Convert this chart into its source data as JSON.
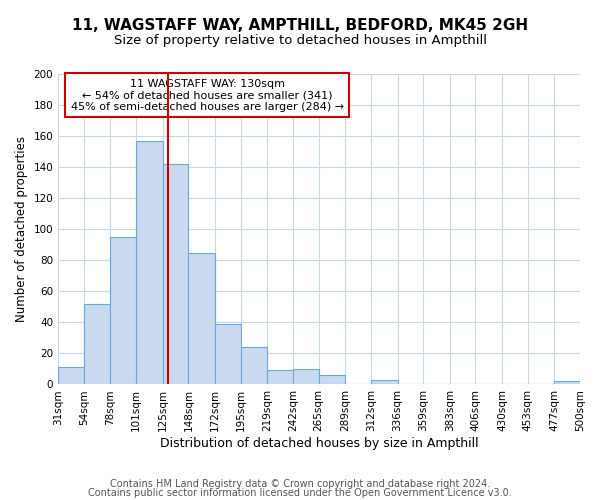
{
  "title": "11, WAGSTAFF WAY, AMPTHILL, BEDFORD, MK45 2GH",
  "subtitle": "Size of property relative to detached houses in Ampthill",
  "xlabel": "Distribution of detached houses by size in Ampthill",
  "ylabel": "Number of detached properties",
  "bin_edges": [
    31,
    54,
    78,
    101,
    125,
    148,
    172,
    195,
    219,
    242,
    265,
    289,
    312,
    336,
    359,
    383,
    406,
    430,
    453,
    477,
    500
  ],
  "counts": [
    11,
    52,
    95,
    157,
    142,
    85,
    39,
    24,
    9,
    10,
    6,
    0,
    3,
    0,
    0,
    0,
    0,
    0,
    0,
    2
  ],
  "bar_color": "#c8d9f0",
  "bar_edge_color": "#6fa8d6",
  "vline_color": "#cc0000",
  "vline_x": 130,
  "annotation_text": "11 WAGSTAFF WAY: 130sqm\n← 54% of detached houses are smaller (341)\n45% of semi-detached houses are larger (284) →",
  "annotation_box_color": "white",
  "annotation_box_edge_color": "#cc0000",
  "ylim": [
    0,
    200
  ],
  "yticks": [
    0,
    20,
    40,
    60,
    80,
    100,
    120,
    140,
    160,
    180,
    200
  ],
  "footer_line1": "Contains HM Land Registry data © Crown copyright and database right 2024.",
  "footer_line2": "Contains public sector information licensed under the Open Government Licence v3.0.",
  "bg_color": "#ffffff",
  "grid_color": "#c8d8e8",
  "title_fontsize": 11,
  "subtitle_fontsize": 9.5,
  "xlabel_fontsize": 9,
  "ylabel_fontsize": 8.5,
  "tick_fontsize": 7.5,
  "annotation_fontsize": 8,
  "footer_fontsize": 7
}
